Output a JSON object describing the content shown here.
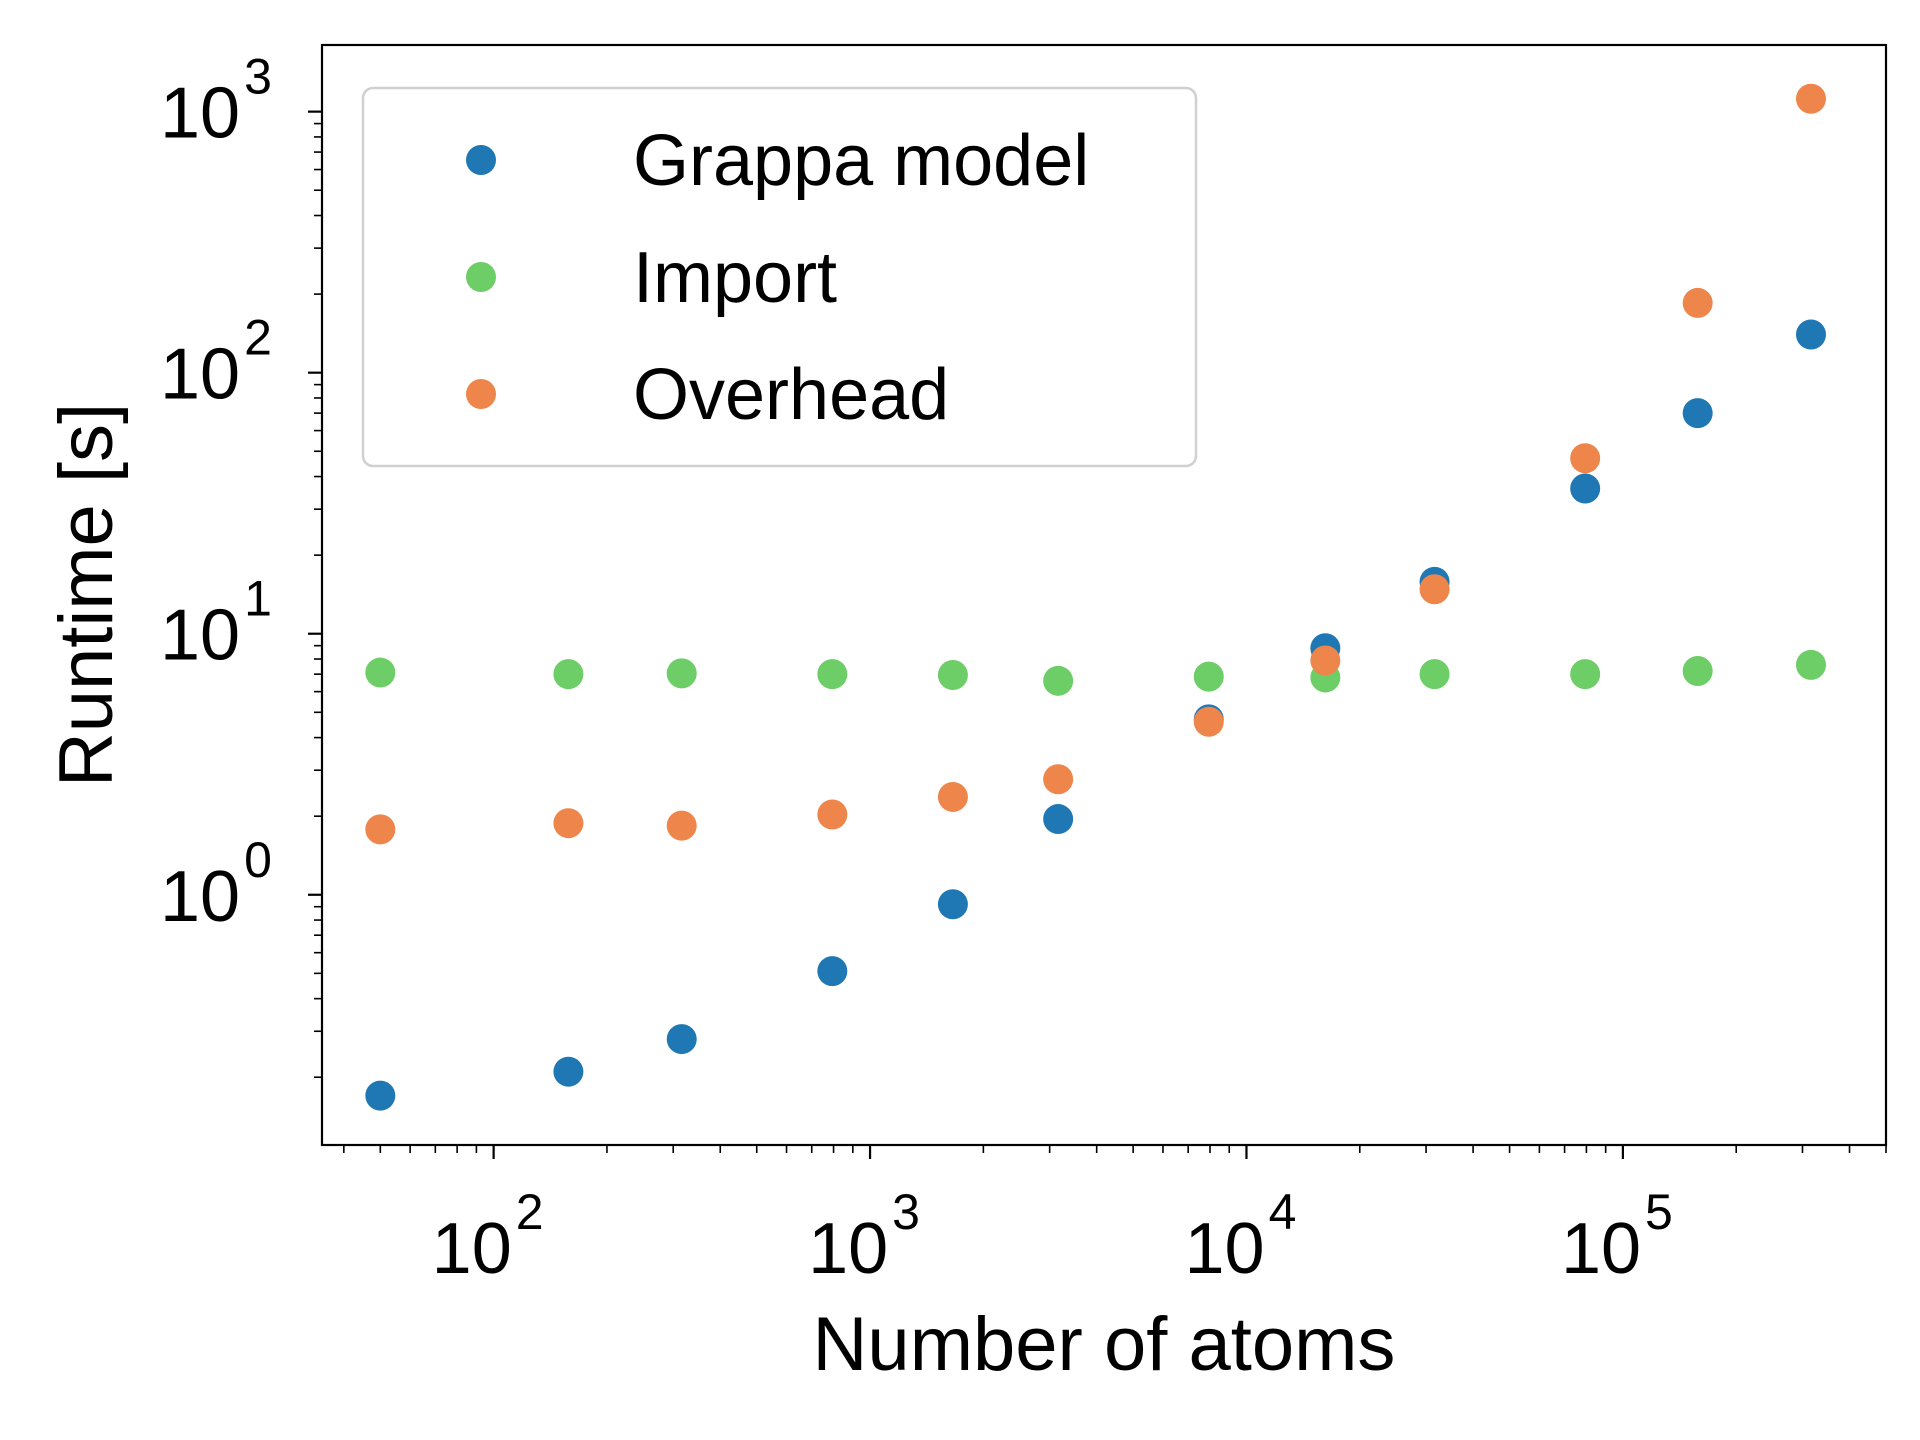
{
  "chart_data": {
    "type": "scatter",
    "title": "",
    "xlabel": "Number of atoms",
    "ylabel": "Runtime [s]",
    "xscale": "log",
    "yscale": "log",
    "xlim": [
      35,
      500000
    ],
    "ylim": [
      0.11,
      1800
    ],
    "grid": false,
    "legend_position": "top-left",
    "x_ticks": [
      {
        "base": "10",
        "exp": "2",
        "value": 100
      },
      {
        "base": "10",
        "exp": "3",
        "value": 1000
      },
      {
        "base": "10",
        "exp": "4",
        "value": 10000
      },
      {
        "base": "10",
        "exp": "5",
        "value": 100000
      }
    ],
    "y_ticks": [
      {
        "base": "10",
        "exp": "0",
        "value": 1
      },
      {
        "base": "10",
        "exp": "1",
        "value": 10
      },
      {
        "base": "10",
        "exp": "2",
        "value": 100
      },
      {
        "base": "10",
        "exp": "3",
        "value": 1000
      }
    ],
    "x": [
      50,
      158,
      316,
      794,
      1660,
      3160,
      7940,
      16200,
      31600,
      79400,
      158000,
      316000
    ],
    "series": [
      {
        "name": "Grappa model",
        "color": "#1f77b4",
        "values": [
          0.17,
          0.21,
          0.28,
          0.51,
          0.92,
          1.95,
          4.7,
          8.8,
          15.8,
          36,
          70,
          140
        ]
      },
      {
        "name": "Import",
        "color": "#6dcd66",
        "values": [
          7.1,
          7.0,
          7.05,
          7.0,
          6.95,
          6.6,
          6.85,
          6.8,
          7.0,
          7.0,
          7.2,
          7.6
        ]
      },
      {
        "name": "Overhead",
        "color": "#ee854a",
        "values": [
          1.78,
          1.88,
          1.84,
          2.03,
          2.37,
          2.77,
          4.6,
          7.9,
          14.8,
          47,
          185,
          1120
        ]
      }
    ]
  }
}
